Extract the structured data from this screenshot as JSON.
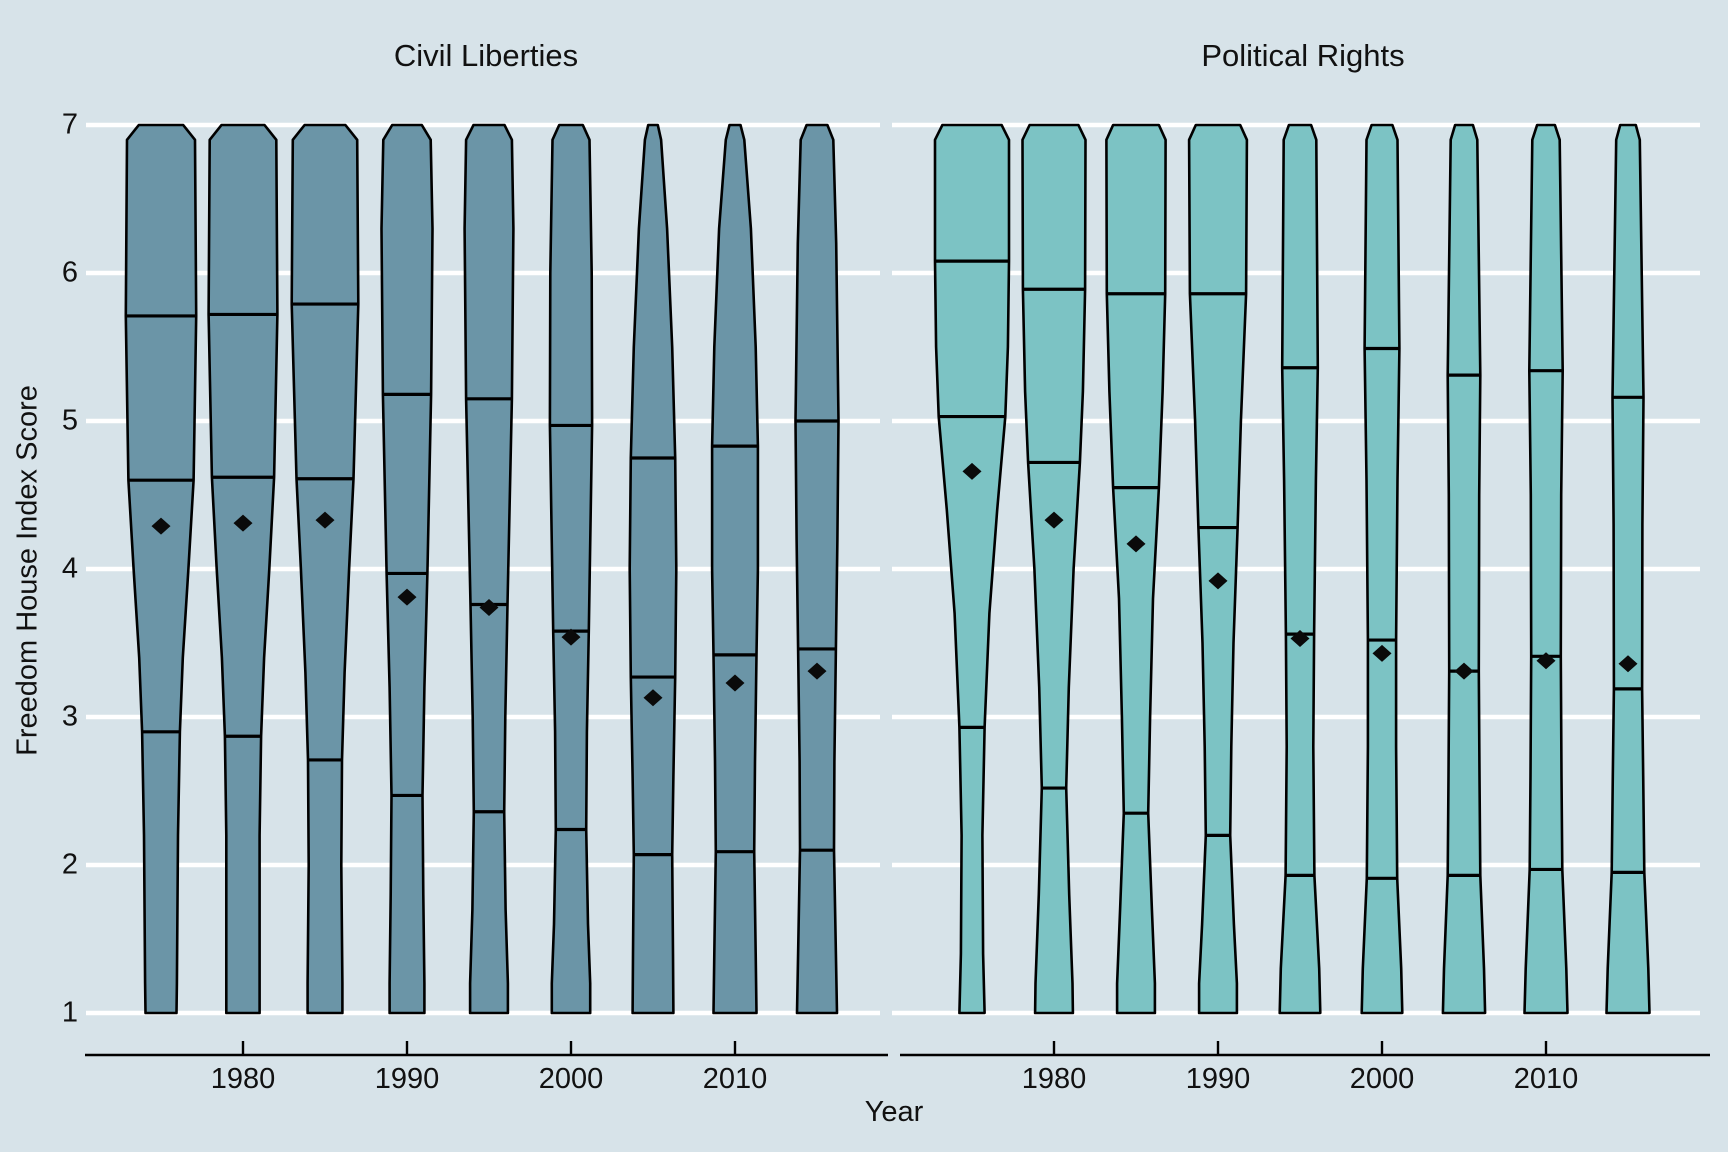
{
  "chart_data": {
    "type": "violin",
    "description": "Two-panel violin plot of Freedom House Index scores by year; each violin shows quartile lines (q1, median, q3) and a diamond marker at the mean.",
    "xlabel": "Year",
    "ylabel": "Freedom House Index Score",
    "ylim": [
      1,
      7
    ],
    "y_ticks": [
      1,
      2,
      3,
      4,
      5,
      6,
      7
    ],
    "grid": "horizontal white gridlines at every integer score",
    "legend": "none",
    "x_years": [
      1975,
      1980,
      1985,
      1990,
      1995,
      2000,
      2005,
      2010,
      2015
    ],
    "x_tick_labels": [
      "1980",
      "1990",
      "2000",
      "2010"
    ],
    "x_tick_year_indices": [
      1,
      3,
      5,
      7
    ],
    "colors": {
      "background": "#d7e3e9",
      "gridline": "#ffffff",
      "outline": "#000000",
      "mean_marker": "#0a0a0a",
      "civil_liberties_fill": "#6b95a7",
      "political_rights_fill": "#7cc3c4"
    },
    "panels": [
      {
        "title": "Civil Liberties",
        "fill": "#6b95a7",
        "stats": [
          {
            "year": 1975,
            "q1": 2.9,
            "median": 4.6,
            "q3": 5.71,
            "mean": 4.29,
            "width_profile": [
              [
                7,
                0.6
              ],
              [
                6.9,
                0.92
              ],
              [
                5.71,
                0.95
              ],
              [
                4.6,
                0.88
              ],
              [
                4.0,
                0.74
              ],
              [
                3.4,
                0.59
              ],
              [
                2.9,
                0.51
              ],
              [
                2.2,
                0.46
              ],
              [
                1.2,
                0.43
              ],
              [
                1,
                0.42
              ]
            ]
          },
          {
            "year": 1980,
            "q1": 2.87,
            "median": 4.62,
            "q3": 5.72,
            "mean": 4.31,
            "width_profile": [
              [
                7,
                0.58
              ],
              [
                6.9,
                0.9
              ],
              [
                5.72,
                0.93
              ],
              [
                4.62,
                0.84
              ],
              [
                4.0,
                0.71
              ],
              [
                3.4,
                0.57
              ],
              [
                2.87,
                0.49
              ],
              [
                2.2,
                0.45
              ],
              [
                1.2,
                0.45
              ],
              [
                1,
                0.45
              ]
            ]
          },
          {
            "year": 1985,
            "q1": 2.71,
            "median": 4.61,
            "q3": 5.79,
            "mean": 4.33,
            "width_profile": [
              [
                7,
                0.55
              ],
              [
                6.9,
                0.87
              ],
              [
                5.79,
                0.9
              ],
              [
                4.61,
                0.77
              ],
              [
                4.0,
                0.65
              ],
              [
                3.3,
                0.53
              ],
              [
                2.71,
                0.46
              ],
              [
                2.0,
                0.44
              ],
              [
                1.2,
                0.47
              ],
              [
                1,
                0.47
              ]
            ]
          },
          {
            "year": 1990,
            "q1": 2.47,
            "median": 3.97,
            "q3": 5.18,
            "mean": 3.81,
            "width_profile": [
              [
                7,
                0.4
              ],
              [
                6.9,
                0.64
              ],
              [
                6.3,
                0.69
              ],
              [
                5.18,
                0.65
              ],
              [
                3.97,
                0.55
              ],
              [
                3.2,
                0.47
              ],
              [
                2.47,
                0.42
              ],
              [
                1.8,
                0.44
              ],
              [
                1.2,
                0.47
              ],
              [
                1,
                0.47
              ]
            ]
          },
          {
            "year": 1995,
            "q1": 2.36,
            "median": 3.76,
            "q3": 5.15,
            "mean": 3.74,
            "width_profile": [
              [
                7,
                0.42
              ],
              [
                6.9,
                0.62
              ],
              [
                6.3,
                0.66
              ],
              [
                5.15,
                0.62
              ],
              [
                3.76,
                0.5
              ],
              [
                3.0,
                0.44
              ],
              [
                2.36,
                0.41
              ],
              [
                1.7,
                0.45
              ],
              [
                1.2,
                0.51
              ],
              [
                1,
                0.51
              ]
            ]
          },
          {
            "year": 2000,
            "q1": 2.24,
            "median": 3.58,
            "q3": 4.97,
            "mean": 3.54,
            "width_profile": [
              [
                7,
                0.32
              ],
              [
                6.9,
                0.5
              ],
              [
                6.0,
                0.56
              ],
              [
                4.97,
                0.57
              ],
              [
                3.58,
                0.48
              ],
              [
                2.9,
                0.43
              ],
              [
                2.24,
                0.41
              ],
              [
                1.6,
                0.46
              ],
              [
                1.2,
                0.52
              ],
              [
                1,
                0.52
              ]
            ]
          },
          {
            "year": 2005,
            "q1": 2.07,
            "median": 3.27,
            "q3": 4.75,
            "mean": 3.13,
            "width_profile": [
              [
                7,
                0.13
              ],
              [
                6.9,
                0.22
              ],
              [
                6.3,
                0.38
              ],
              [
                5.5,
                0.52
              ],
              [
                4.75,
                0.6
              ],
              [
                4.0,
                0.63
              ],
              [
                3.27,
                0.6
              ],
              [
                2.6,
                0.55
              ],
              [
                2.07,
                0.52
              ],
              [
                1.4,
                0.54
              ],
              [
                1,
                0.55
              ]
            ]
          },
          {
            "year": 2010,
            "q1": 2.09,
            "median": 3.42,
            "q3": 4.83,
            "mean": 3.23,
            "width_profile": [
              [
                7,
                0.15
              ],
              [
                6.9,
                0.25
              ],
              [
                6.3,
                0.43
              ],
              [
                5.5,
                0.56
              ],
              [
                4.83,
                0.62
              ],
              [
                4.0,
                0.62
              ],
              [
                3.42,
                0.58
              ],
              [
                2.7,
                0.54
              ],
              [
                2.09,
                0.52
              ],
              [
                1.4,
                0.56
              ],
              [
                1,
                0.58
              ]
            ]
          },
          {
            "year": 2015,
            "q1": 2.1,
            "median": 3.46,
            "q3": 5.0,
            "mean": 3.31,
            "width_profile": [
              [
                7,
                0.28
              ],
              [
                6.9,
                0.44
              ],
              [
                6.2,
                0.52
              ],
              [
                5.0,
                0.58
              ],
              [
                4.2,
                0.55
              ],
              [
                3.46,
                0.51
              ],
              [
                2.7,
                0.47
              ],
              [
                2.1,
                0.46
              ],
              [
                1.4,
                0.51
              ],
              [
                1,
                0.54
              ]
            ]
          }
        ]
      },
      {
        "title": "Political Rights",
        "fill": "#7cc3c4",
        "stats": [
          {
            "year": 1975,
            "q1": 2.93,
            "median": 5.03,
            "q3": 6.08,
            "mean": 4.66,
            "width_profile": [
              [
                7,
                0.8
              ],
              [
                6.9,
                1.0
              ],
              [
                6.08,
                1.0
              ],
              [
                5.5,
                0.97
              ],
              [
                5.03,
                0.9
              ],
              [
                4.4,
                0.68
              ],
              [
                3.7,
                0.47
              ],
              [
                2.93,
                0.34
              ],
              [
                2.2,
                0.28
              ],
              [
                1.4,
                0.3
              ],
              [
                1,
                0.34
              ]
            ]
          },
          {
            "year": 1980,
            "q1": 2.52,
            "median": 4.72,
            "q3": 5.89,
            "mean": 4.33,
            "width_profile": [
              [
                7,
                0.66
              ],
              [
                6.9,
                0.85
              ],
              [
                5.89,
                0.84
              ],
              [
                5.2,
                0.78
              ],
              [
                4.72,
                0.7
              ],
              [
                4.0,
                0.53
              ],
              [
                3.2,
                0.4
              ],
              [
                2.52,
                0.33
              ],
              [
                1.8,
                0.41
              ],
              [
                1.2,
                0.5
              ],
              [
                1,
                0.51
              ]
            ]
          },
          {
            "year": 1985,
            "q1": 2.35,
            "median": 4.55,
            "q3": 5.86,
            "mean": 4.17,
            "width_profile": [
              [
                7,
                0.62
              ],
              [
                6.9,
                0.8
              ],
              [
                5.86,
                0.79
              ],
              [
                5.2,
                0.72
              ],
              [
                4.55,
                0.62
              ],
              [
                3.8,
                0.46
              ],
              [
                3.0,
                0.38
              ],
              [
                2.35,
                0.33
              ],
              [
                1.7,
                0.43
              ],
              [
                1.2,
                0.51
              ],
              [
                1,
                0.51
              ]
            ]
          },
          {
            "year": 1990,
            "q1": 2.2,
            "median": 4.28,
            "q3": 5.86,
            "mean": 3.92,
            "width_profile": [
              [
                7,
                0.6
              ],
              [
                6.9,
                0.78
              ],
              [
                5.86,
                0.76
              ],
              [
                5.0,
                0.62
              ],
              [
                4.28,
                0.53
              ],
              [
                3.5,
                0.42
              ],
              [
                2.8,
                0.36
              ],
              [
                2.2,
                0.33
              ],
              [
                1.6,
                0.43
              ],
              [
                1.2,
                0.51
              ],
              [
                1,
                0.51
              ]
            ]
          },
          {
            "year": 1995,
            "q1": 1.93,
            "median": 3.56,
            "q3": 5.36,
            "mean": 3.53,
            "width_profile": [
              [
                7,
                0.3
              ],
              [
                6.9,
                0.44
              ],
              [
                5.36,
                0.48
              ],
              [
                4.6,
                0.43
              ],
              [
                3.56,
                0.38
              ],
              [
                2.8,
                0.36
              ],
              [
                1.93,
                0.39
              ],
              [
                1.3,
                0.52
              ],
              [
                1,
                0.55
              ]
            ]
          },
          {
            "year": 2000,
            "q1": 1.91,
            "median": 3.52,
            "q3": 5.49,
            "mean": 3.43,
            "width_profile": [
              [
                7,
                0.28
              ],
              [
                6.9,
                0.42
              ],
              [
                5.49,
                0.47
              ],
              [
                4.6,
                0.42
              ],
              [
                3.52,
                0.38
              ],
              [
                2.8,
                0.38
              ],
              [
                1.91,
                0.41
              ],
              [
                1.3,
                0.52
              ],
              [
                1,
                0.55
              ]
            ]
          },
          {
            "year": 2005,
            "q1": 1.93,
            "median": 3.31,
            "q3": 5.31,
            "mean": 3.31,
            "width_profile": [
              [
                7,
                0.24
              ],
              [
                6.9,
                0.36
              ],
              [
                5.31,
                0.44
              ],
              [
                4.5,
                0.41
              ],
              [
                3.31,
                0.4
              ],
              [
                2.6,
                0.42
              ],
              [
                1.93,
                0.44
              ],
              [
                1.3,
                0.54
              ],
              [
                1,
                0.57
              ]
            ]
          },
          {
            "year": 2010,
            "q1": 1.97,
            "median": 3.41,
            "q3": 5.34,
            "mean": 3.38,
            "width_profile": [
              [
                7,
                0.24
              ],
              [
                6.9,
                0.37
              ],
              [
                5.34,
                0.45
              ],
              [
                4.5,
                0.41
              ],
              [
                3.41,
                0.4
              ],
              [
                2.6,
                0.42
              ],
              [
                1.97,
                0.44
              ],
              [
                1.3,
                0.55
              ],
              [
                1,
                0.58
              ]
            ]
          },
          {
            "year": 2015,
            "q1": 1.95,
            "median": 3.19,
            "q3": 5.16,
            "mean": 3.36,
            "width_profile": [
              [
                7,
                0.21
              ],
              [
                6.9,
                0.32
              ],
              [
                5.16,
                0.42
              ],
              [
                4.3,
                0.39
              ],
              [
                3.19,
                0.38
              ],
              [
                2.6,
                0.41
              ],
              [
                1.95,
                0.44
              ],
              [
                1.3,
                0.55
              ],
              [
                1,
                0.58
              ]
            ]
          }
        ]
      }
    ]
  }
}
